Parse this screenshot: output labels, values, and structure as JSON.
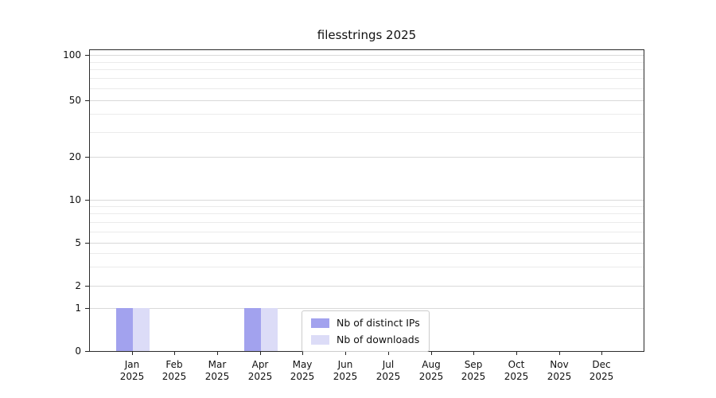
{
  "chart_data": {
    "type": "bar",
    "title": "filesstrings 2025",
    "categories": [
      "Jan",
      "Feb",
      "Mar",
      "Apr",
      "May",
      "Jun",
      "Jul",
      "Aug",
      "Sep",
      "Oct",
      "Nov",
      "Dec"
    ],
    "xtick_year": "2025",
    "series": [
      {
        "name": "Nb of distinct IPs",
        "color": "#a2a2ee",
        "values": [
          1,
          0,
          0,
          1,
          0,
          0,
          0,
          0,
          0,
          0,
          0,
          0
        ]
      },
      {
        "name": "Nb of downloads",
        "color": "#dcdcf7",
        "values": [
          1,
          0,
          0,
          1,
          0,
          0,
          0,
          0,
          0,
          0,
          0,
          0
        ]
      }
    ],
    "yticks": [
      0,
      1,
      2,
      5,
      10,
      20,
      50,
      100
    ],
    "minor_gridlines": [
      3,
      4,
      6,
      7,
      8,
      9,
      30,
      40,
      60,
      70,
      80,
      90
    ],
    "ylim": [
      0,
      110
    ],
    "yscale": "symlog",
    "grid": "horizontal",
    "legend_position": "lower-center-inside"
  }
}
